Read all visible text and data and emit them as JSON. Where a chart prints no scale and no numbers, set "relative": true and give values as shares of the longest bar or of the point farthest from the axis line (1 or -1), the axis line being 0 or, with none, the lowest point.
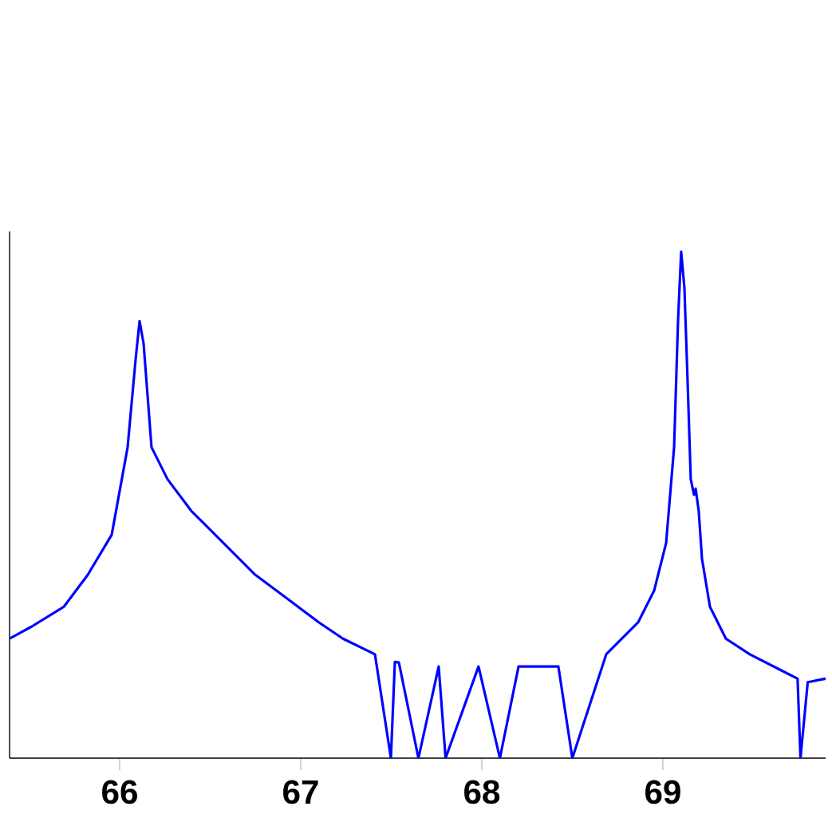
{
  "chart_data": {
    "type": "line",
    "relative": true,
    "color": "#0000ff",
    "x": [
      65.392,
      65.515,
      65.692,
      65.824,
      65.956,
      66.044,
      66.088,
      66.11,
      66.132,
      66.176,
      66.264,
      66.396,
      66.573,
      66.749,
      66.925,
      67.101,
      67.233,
      67.41,
      67.498,
      67.52,
      67.542,
      67.65,
      67.762,
      67.8,
      67.982,
      68.1,
      68.203,
      68.423,
      68.5,
      68.687,
      68.863,
      68.952,
      69.018,
      69.062,
      69.084,
      69.101,
      69.119,
      69.137,
      69.154,
      69.172,
      69.181,
      69.198,
      69.216,
      69.26,
      69.348,
      69.48,
      69.656,
      69.744,
      69.76,
      69.8,
      69.899
    ],
    "values": [
      0.236,
      0.26,
      0.299,
      0.362,
      0.441,
      0.614,
      0.787,
      0.863,
      0.819,
      0.614,
      0.551,
      0.488,
      0.425,
      0.362,
      0.315,
      0.268,
      0.236,
      0.205,
      0,
      0.19,
      0.189,
      0,
      0.181,
      0,
      0.181,
      0,
      0.181,
      0.181,
      0,
      0.205,
      0.268,
      0.331,
      0.425,
      0.614,
      0.866,
      1,
      0.929,
      0.74,
      0.551,
      0.52,
      0.532,
      0.488,
      0.394,
      0.299,
      0.236,
      0.205,
      0.173,
      0.157,
      0,
      0.15,
      0.157
    ],
    "xlim": [
      65.392,
      69.899
    ],
    "xticks": [
      66,
      67,
      68,
      69
    ]
  }
}
